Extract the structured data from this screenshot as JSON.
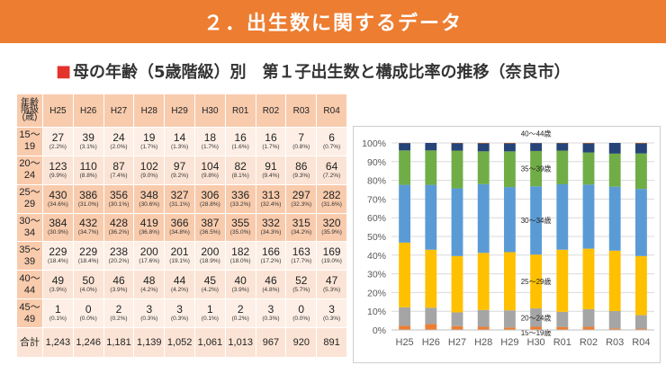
{
  "header": {
    "banner_title": "２．出生数に関するデータ"
  },
  "subtitle": {
    "bullet": "■",
    "text": "母の年齢（5歳階級）別　第１子出生数と構成比率の推移（奈良市）"
  },
  "table": {
    "corner_label": [
      "年齢",
      "階級",
      "(歳)"
    ],
    "years": [
      "H25",
      "H26",
      "H27",
      "H28",
      "H29",
      "H30",
      "R01",
      "R02",
      "R03",
      "R04"
    ],
    "rows": [
      {
        "age": [
          "15～",
          "19"
        ],
        "values": [
          "27",
          "39",
          "24",
          "19",
          "14",
          "18",
          "16",
          "16",
          "7",
          "6"
        ],
        "pct": [
          "(2.2%)",
          "(3.1%)",
          "(2.0%)",
          "(1.7%)",
          "(1.3%)",
          "(1.7%)",
          "(1.6%)",
          "(1.7%)",
          "(0.8%)",
          "(0.7%)"
        ]
      },
      {
        "age": [
          "20～",
          "24"
        ],
        "values": [
          "123",
          "110",
          "87",
          "102",
          "97",
          "104",
          "82",
          "91",
          "86",
          "64"
        ],
        "pct": [
          "(9.9%)",
          "(8.8%)",
          "(7.4%)",
          "(9.0%)",
          "(9.2%)",
          "(9.8%)",
          "(8.1%)",
          "(9.4%)",
          "(9.3%)",
          "(7.2%)"
        ]
      },
      {
        "age": [
          "25～",
          "29"
        ],
        "values": [
          "430",
          "386",
          "356",
          "348",
          "327",
          "306",
          "336",
          "313",
          "297",
          "282"
        ],
        "pct": [
          "(34.6%)",
          "(31.0%)",
          "(30.1%)",
          "(30.6%)",
          "(31.1%)",
          "(28.8%)",
          "(33.2%)",
          "(32.4%)",
          "(32.3%)",
          "(31.6%)"
        ]
      },
      {
        "age": [
          "30～",
          "34"
        ],
        "values": [
          "384",
          "432",
          "428",
          "419",
          "366",
          "387",
          "355",
          "332",
          "315",
          "320"
        ],
        "pct": [
          "(30.9%)",
          "(34.7%)",
          "(36.2%)",
          "(36.8%)",
          "(34.8%)",
          "(36.5%)",
          "(35.0%)",
          "(34.3%)",
          "(34.2%)",
          "(35.9%)"
        ]
      },
      {
        "age": [
          "35～",
          "39"
        ],
        "values": [
          "229",
          "229",
          "238",
          "200",
          "201",
          "200",
          "182",
          "166",
          "163",
          "169"
        ],
        "pct": [
          "(18.4%)",
          "(18.4%)",
          "(20.2%)",
          "(17.6%)",
          "(19.1%)",
          "(18.9%)",
          "(18.0%)",
          "(17.2%)",
          "(17.7%)",
          "(19.0%)"
        ]
      },
      {
        "age": [
          "40～",
          "44"
        ],
        "values": [
          "49",
          "50",
          "46",
          "48",
          "44",
          "45",
          "40",
          "46",
          "52",
          "47"
        ],
        "pct": [
          "(3.9%)",
          "(4.0%)",
          "(3.9%)",
          "(4.2%)",
          "(4.2%)",
          "(4.2%)",
          "(3.9%)",
          "(4.8%)",
          "(5.7%)",
          "(5.3%)"
        ]
      },
      {
        "age": [
          "45～",
          "49"
        ],
        "values": [
          "1",
          "0",
          "2",
          "3",
          "3",
          "1",
          "2",
          "3",
          "0",
          "3"
        ],
        "pct": [
          "(0.1%)",
          "(0.0%)",
          "(0.2%)",
          "(0.3%)",
          "(0.3%)",
          "(0.1%)",
          "(0.2%)",
          "(0.3%)",
          "(0.0%)",
          "(0.3%)"
        ]
      }
    ],
    "total_label": "合計",
    "totals": [
      "1,243",
      "1,246",
      "1,181",
      "1,139",
      "1,052",
      "1,061",
      "1,013",
      "967",
      "920",
      "891"
    ]
  },
  "chart_data": {
    "type": "bar",
    "stacked": "percent",
    "categories": [
      "H25",
      "H26",
      "H27",
      "H28",
      "H29",
      "H30",
      "R01",
      "R02",
      "R03",
      "R04"
    ],
    "ylim": [
      0,
      100
    ],
    "ytick_labels": [
      "0%",
      "10%",
      "20%",
      "30%",
      "40%",
      "50%",
      "60%",
      "70%",
      "80%",
      "90%",
      "100%"
    ],
    "series": [
      {
        "name": "15～19歳",
        "color": "#ED7D31",
        "values": [
          2.2,
          3.1,
          2.0,
          1.7,
          1.3,
          1.7,
          1.6,
          1.7,
          0.8,
          0.7
        ]
      },
      {
        "name": "20～24歳",
        "color": "#A5A5A5",
        "values": [
          9.9,
          8.8,
          7.4,
          9.0,
          9.2,
          9.8,
          8.1,
          9.4,
          9.3,
          7.2
        ]
      },
      {
        "name": "25～29歳",
        "color": "#FFC000",
        "values": [
          34.6,
          31.0,
          30.1,
          30.6,
          31.1,
          28.8,
          33.2,
          32.4,
          32.3,
          31.6
        ]
      },
      {
        "name": "30～34歳",
        "color": "#5B9BD5",
        "values": [
          30.9,
          34.7,
          36.2,
          36.8,
          34.8,
          36.5,
          35.0,
          34.3,
          34.2,
          35.9
        ]
      },
      {
        "name": "35～39歳",
        "color": "#70AD47",
        "values": [
          18.4,
          18.4,
          20.2,
          17.6,
          19.1,
          18.9,
          18.0,
          17.2,
          17.7,
          19.0
        ]
      },
      {
        "name": "40～44歳",
        "color": "#264478",
        "values": [
          3.9,
          4.0,
          3.9,
          4.2,
          4.2,
          4.2,
          3.9,
          4.8,
          5.7,
          5.3
        ]
      },
      {
        "name": "45～49歳",
        "color": "#9E480E",
        "values": [
          0.1,
          0.0,
          0.2,
          0.3,
          0.3,
          0.1,
          0.2,
          0.3,
          0.0,
          0.3
        ]
      }
    ],
    "annotations": [
      "40～44歳",
      "35～39歳",
      "30～34歳",
      "25～29歳",
      "20～24歳",
      "15～19歳"
    ]
  }
}
